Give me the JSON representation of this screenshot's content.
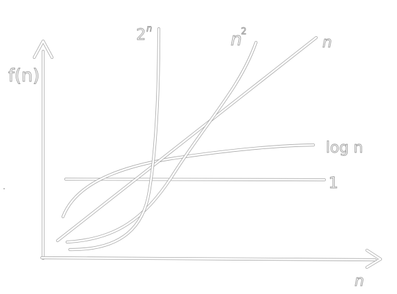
{
  "diagram": {
    "y_axis_label": "f(n)",
    "x_axis_label": "n",
    "curves": [
      {
        "id": "exp",
        "label": "2",
        "label_sup": "n"
      },
      {
        "id": "quad",
        "label": "n",
        "label_sup": "2"
      },
      {
        "id": "linear",
        "label": "n"
      },
      {
        "id": "log",
        "label": "log n"
      },
      {
        "id": "const",
        "label": "1"
      }
    ],
    "colors": {
      "stroke": "#a8a8a8",
      "fill": "#ffffff",
      "background": "#ffffff"
    }
  }
}
